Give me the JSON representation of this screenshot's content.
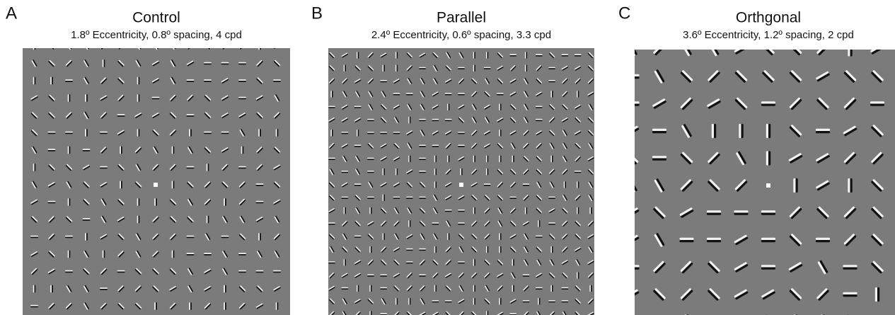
{
  "panels": [
    {
      "letter": "A",
      "title": "Control",
      "subtitle": "1.8º Eccentricity, 0.8º spacing, 4 cpd"
    },
    {
      "letter": "B",
      "title": "Parallel",
      "subtitle": "2.4º Eccentricity, 0.6º spacing, 3.3 cpd"
    },
    {
      "letter": "C",
      "title": "Orthgonal",
      "subtitle": "3.6º Eccentricity, 1.2º spacing, 2 cpd"
    }
  ]
}
